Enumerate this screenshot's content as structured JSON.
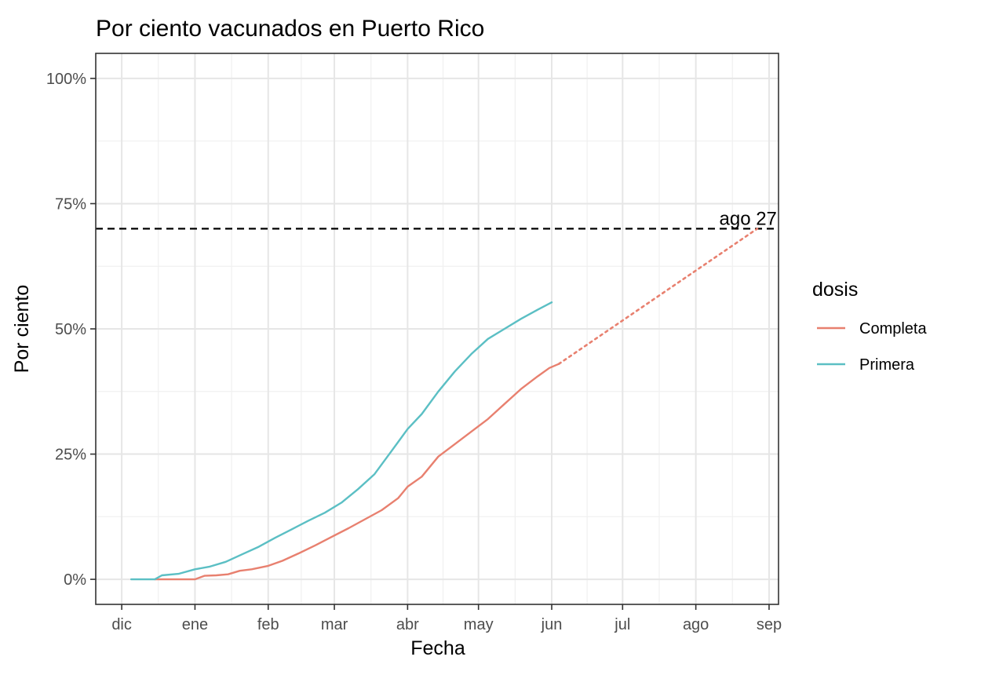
{
  "chart_data": {
    "type": "line",
    "title": "Por ciento vacunados en Puerto Rico",
    "xlabel": "Fecha",
    "ylabel": "Por ciento",
    "x_ticks": [
      "dic",
      "ene",
      "feb",
      "mar",
      "abr",
      "may",
      "jun",
      "jul",
      "ago",
      "sep"
    ],
    "y_ticks": [
      "0%",
      "25%",
      "50%",
      "75%",
      "100%"
    ],
    "ylim": [
      -0.05,
      1.05
    ],
    "xlim": [
      "2020-11-20",
      "2021-09-05"
    ],
    "grid": true,
    "legend": {
      "title": "dosis",
      "placement": "right",
      "items": [
        {
          "label": "Completa",
          "color": "#e8806f"
        },
        {
          "label": "Primera",
          "color": "#5bbfc4"
        }
      ]
    },
    "series": [
      {
        "name": "Completa",
        "color": "#e8806f",
        "points": [
          [
            "2020-12-15",
            0.0
          ],
          [
            "2021-01-01",
            0.0
          ],
          [
            "2021-01-05",
            0.007
          ],
          [
            "2021-01-10",
            0.008
          ],
          [
            "2021-01-15",
            0.01
          ],
          [
            "2021-01-20",
            0.017
          ],
          [
            "2021-01-25",
            0.02
          ],
          [
            "2021-02-01",
            0.027
          ],
          [
            "2021-02-07",
            0.037
          ],
          [
            "2021-02-14",
            0.052
          ],
          [
            "2021-02-21",
            0.068
          ],
          [
            "2021-02-28",
            0.085
          ],
          [
            "2021-03-07",
            0.102
          ],
          [
            "2021-03-14",
            0.12
          ],
          [
            "2021-03-21",
            0.138
          ],
          [
            "2021-03-28",
            0.162
          ],
          [
            "2021-04-01",
            0.185
          ],
          [
            "2021-04-07",
            0.205
          ],
          [
            "2021-04-14",
            0.245
          ],
          [
            "2021-04-21",
            0.27
          ],
          [
            "2021-04-28",
            0.295
          ],
          [
            "2021-05-05",
            0.32
          ],
          [
            "2021-05-12",
            0.35
          ],
          [
            "2021-05-19",
            0.38
          ],
          [
            "2021-05-26",
            0.405
          ],
          [
            "2021-05-31",
            0.422
          ],
          [
            "2021-06-04",
            0.43
          ]
        ]
      },
      {
        "name": "Primera",
        "color": "#5bbfc4",
        "points": [
          [
            "2020-12-05",
            0.0
          ],
          [
            "2020-12-10",
            0.0
          ],
          [
            "2020-12-15",
            0.0
          ],
          [
            "2020-12-18",
            0.008
          ],
          [
            "2020-12-25",
            0.011
          ],
          [
            "2021-01-01",
            0.02
          ],
          [
            "2021-01-07",
            0.025
          ],
          [
            "2021-01-14",
            0.035
          ],
          [
            "2021-01-21",
            0.05
          ],
          [
            "2021-01-28",
            0.065
          ],
          [
            "2021-02-04",
            0.083
          ],
          [
            "2021-02-11",
            0.1
          ],
          [
            "2021-02-18",
            0.117
          ],
          [
            "2021-02-25",
            0.133
          ],
          [
            "2021-03-04",
            0.153
          ],
          [
            "2021-03-11",
            0.18
          ],
          [
            "2021-03-18",
            0.21
          ],
          [
            "2021-03-25",
            0.255
          ],
          [
            "2021-04-01",
            0.3
          ],
          [
            "2021-04-07",
            0.33
          ],
          [
            "2021-04-14",
            0.375
          ],
          [
            "2021-04-21",
            0.415
          ],
          [
            "2021-04-28",
            0.45
          ],
          [
            "2021-05-05",
            0.48
          ],
          [
            "2021-05-12",
            0.5
          ],
          [
            "2021-05-19",
            0.52
          ],
          [
            "2021-05-26",
            0.538
          ],
          [
            "2021-06-01",
            0.553
          ]
        ]
      },
      {
        "name": "Completa",
        "style": "dotted",
        "color": "#e8806f",
        "points": [
          [
            "2021-06-04",
            0.43
          ],
          [
            "2021-08-27",
            0.7
          ]
        ]
      }
    ],
    "reference_line": {
      "y": 0.7,
      "style": "dashed",
      "color": "#000000"
    },
    "annotations": [
      {
        "text": "ago 27",
        "x": "2021-08-27",
        "y": 0.7
      }
    ]
  }
}
